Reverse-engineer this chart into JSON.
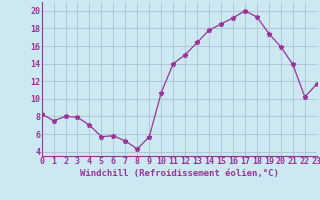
{
  "x": [
    0,
    1,
    2,
    3,
    4,
    5,
    6,
    7,
    8,
    9,
    10,
    11,
    12,
    13,
    14,
    15,
    16,
    17,
    18,
    19,
    20,
    21,
    22,
    23
  ],
  "y": [
    8.3,
    7.5,
    8.0,
    7.9,
    7.0,
    5.7,
    5.8,
    5.2,
    4.3,
    5.7,
    10.7,
    14.0,
    15.0,
    16.4,
    17.8,
    18.5,
    19.2,
    20.0,
    19.3,
    17.4,
    15.9,
    13.9,
    10.2,
    11.7
  ],
  "line_color": "#993399",
  "marker": "*",
  "marker_size": 3.5,
  "bg_color": "#cce8f0",
  "grid_color": "#b0c8d8",
  "xlabel": "Windchill (Refroidissement éolien,°C)",
  "ylim": [
    3.5,
    21
  ],
  "xlim": [
    0,
    23
  ],
  "yticks": [
    4,
    6,
    8,
    10,
    12,
    14,
    16,
    18,
    20
  ],
  "xticks": [
    0,
    1,
    2,
    3,
    4,
    5,
    6,
    7,
    8,
    9,
    10,
    11,
    12,
    13,
    14,
    15,
    16,
    17,
    18,
    19,
    20,
    21,
    22,
    23
  ],
  "axis_color": "#993399",
  "tick_color": "#993399",
  "label_color": "#993399",
  "label_fontsize": 6.5,
  "tick_fontsize": 6.0
}
